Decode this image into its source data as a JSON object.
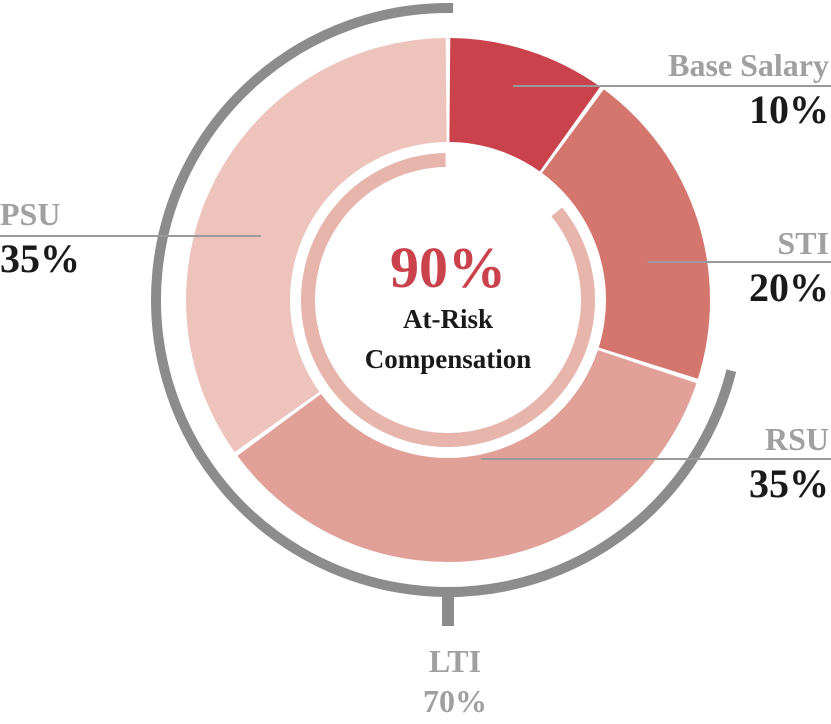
{
  "chart_data": {
    "type": "pie",
    "subtype": "donut",
    "categories": [
      "Base Salary",
      "STI",
      "RSU",
      "PSU"
    ],
    "values": [
      10,
      20,
      35,
      35
    ],
    "value_labels": [
      "10%",
      "20%",
      "35%",
      "35%"
    ],
    "colors": [
      "#c9424c",
      "#d4766e",
      "#e1a098",
      "#edc3bc"
    ],
    "center": {
      "headline": "90%",
      "line1": "At-Risk",
      "line2": "Compensation"
    },
    "at_risk_share": 90,
    "group": {
      "name": "LTI",
      "label_value": "70%",
      "members": [
        "RSU",
        "PSU"
      ],
      "share": 70
    },
    "legend": "none"
  },
  "style": {
    "label_name_color": "#a0a0a0",
    "label_value_color": "#1a1a1a",
    "leader_color": "#9a9a9a",
    "bracket_color": "#8c8c8c",
    "center_accent": "#c9424c",
    "center_text": "#1a1a1a",
    "inner_ring_color": "#e8b5ad"
  }
}
